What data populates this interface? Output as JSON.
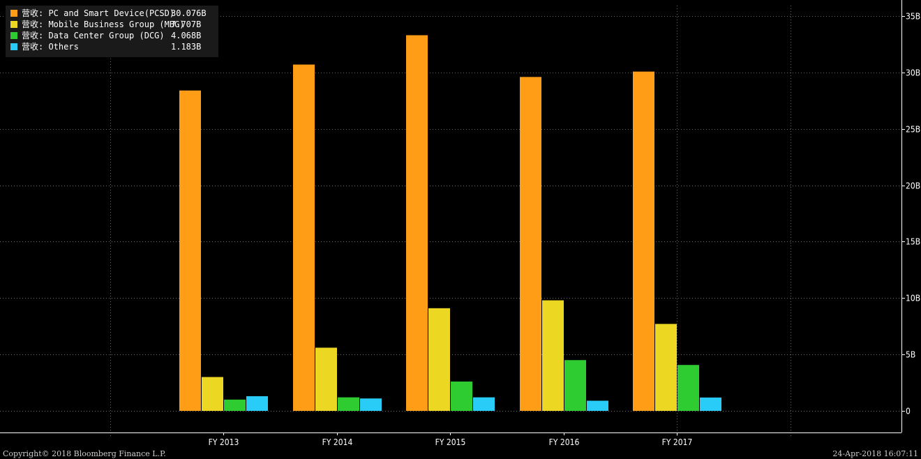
{
  "chart_data": {
    "type": "bar",
    "categories": [
      "FY 2013",
      "FY 2014",
      "FY 2015",
      "FY 2016",
      "FY 2017"
    ],
    "series": [
      {
        "name": "营收: PC and Smart Device(PCSD)",
        "legend_value": "30.076B",
        "color": "#ff9e16",
        "values": [
          28.4,
          30.7,
          33.3,
          29.6,
          30.076
        ]
      },
      {
        "name": "营收: Mobile Business Group (MBG)",
        "legend_value": "7.707B",
        "color": "#ecd822",
        "values": [
          3.0,
          5.6,
          9.1,
          9.8,
          7.707
        ]
      },
      {
        "name": "营收: Data Center Group (DCG)",
        "legend_value": "4.068B",
        "color": "#2ecb31",
        "values": [
          1.0,
          1.2,
          2.6,
          4.5,
          4.068
        ]
      },
      {
        "name": "营收: Others",
        "legend_value": "1.183B",
        "color": "#29ccf6",
        "values": [
          1.3,
          1.1,
          1.2,
          0.9,
          1.183
        ]
      }
    ],
    "yticks": [
      0,
      5,
      10,
      15,
      20,
      25,
      30,
      35
    ],
    "ytick_labels": [
      "0",
      "5B",
      "10B",
      "15B",
      "20B",
      "25B",
      "30B",
      "35B"
    ],
    "ylim": [
      0,
      35
    ],
    "grid": true,
    "legend_position": "top-left",
    "yaxis_side": "right"
  },
  "footer": {
    "copyright": "Copyright© 2018 Bloomberg Finance L.P.",
    "timestamp": "24-Apr-2018 16:07:11"
  }
}
